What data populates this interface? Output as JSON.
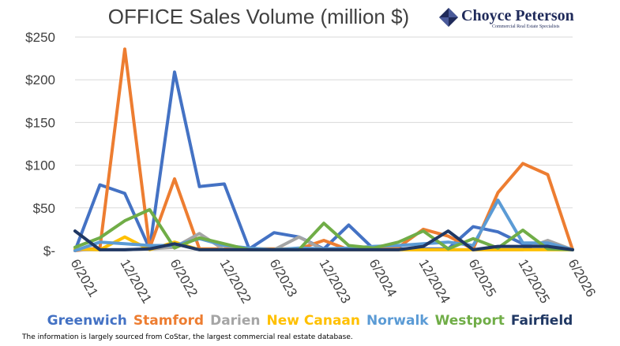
{
  "chart_data": {
    "type": "line",
    "title": "OFFICE Sales Volume (million $)",
    "xlabel": "",
    "ylabel": "",
    "ylim": [
      0,
      250
    ],
    "y_ticks": [
      0,
      50,
      100,
      150,
      200,
      250
    ],
    "y_tick_labels": [
      "$-",
      "$50",
      "$100",
      "$150",
      "$200",
      "$250"
    ],
    "x_periods": [
      "6/2021",
      "9/2021",
      "12/2021",
      "3/2022",
      "6/2022",
      "9/2022",
      "12/2022",
      "3/2023",
      "6/2023",
      "9/2023",
      "12/2023",
      "3/2024",
      "6/2024",
      "9/2024",
      "12/2024",
      "3/2025",
      "6/2025",
      "9/2025",
      "12/2025",
      "3/2026",
      "6/2026"
    ],
    "x_tick_labels": [
      "6/2021",
      "12/2021",
      "6/2022",
      "12/2022",
      "6/2023",
      "12/2023",
      "6/2024",
      "12/2024",
      "6/2025",
      "12/2025",
      "6/2026"
    ],
    "grid": true,
    "legend_position": "bottom",
    "series": [
      {
        "name": "Greenwich",
        "color": "#4472c4",
        "values": [
          0,
          77,
          67,
          2,
          209,
          75,
          78,
          2,
          21,
          16,
          2,
          30,
          2,
          2,
          2,
          2,
          28,
          22,
          8,
          8,
          1
        ]
      },
      {
        "name": "Stamford",
        "color": "#ed7d31",
        "values": [
          0,
          3,
          236,
          3,
          84,
          2,
          2,
          2,
          2,
          2,
          12,
          1,
          4,
          4,
          25,
          17,
          2,
          68,
          102,
          89,
          1
        ]
      },
      {
        "name": "Darien",
        "color": "#a5a5a5",
        "values": [
          1,
          1,
          1,
          2,
          4,
          20,
          1,
          1,
          1,
          16,
          1,
          1,
          1,
          1,
          1,
          1,
          1,
          1,
          1,
          12,
          1
        ]
      },
      {
        "name": "New Canaan",
        "color": "#ffc000",
        "values": [
          2,
          1,
          16,
          1,
          10,
          1,
          1,
          1,
          1,
          1,
          1,
          1,
          1,
          1,
          1,
          1,
          1,
          1,
          1,
          1,
          1
        ]
      },
      {
        "name": "Norwalk",
        "color": "#5b9bd5",
        "values": [
          0,
          10,
          8,
          6,
          6,
          14,
          6,
          3,
          1,
          3,
          2,
          3,
          5,
          6,
          8,
          10,
          6,
          59,
          9,
          9,
          1
        ]
      },
      {
        "name": "Westport",
        "color": "#70ad47",
        "values": [
          4,
          15,
          35,
          48,
          3,
          15,
          8,
          1,
          1,
          1,
          32,
          6,
          3,
          10,
          23,
          2,
          14,
          3,
          24,
          2,
          1
        ]
      },
      {
        "name": "Fairfield",
        "color": "#203864",
        "values": [
          23,
          1,
          1,
          2,
          8,
          1,
          1,
          1,
          1,
          1,
          1,
          1,
          1,
          1,
          5,
          23,
          1,
          5,
          5,
          5,
          1
        ]
      }
    ]
  },
  "logo": {
    "name": "Choyce Peterson",
    "tagline": "Commercial Real Estate Specialists"
  },
  "footnote": "The information is largely sourced from CoStar, the largest commercial real estate database."
}
